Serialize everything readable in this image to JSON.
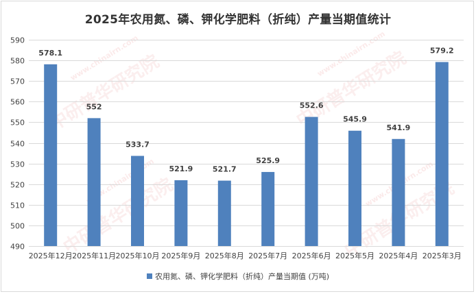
{
  "chart_data": {
    "type": "bar",
    "title": "2025年农用氮、磷、钾化学肥料（折纯）产量当期值统计",
    "categories": [
      "2025年12月",
      "2025年11月",
      "2025年10月",
      "2025年9月",
      "2025年8月",
      "2025年7月",
      "2025年6月",
      "2025年5月",
      "2025年4月",
      "2025年3月"
    ],
    "series": [
      {
        "name": "农用氮、磷、钾化学肥料（折纯）产量当期值 (万吨)",
        "values": [
          578.1,
          552,
          533.7,
          521.9,
          521.7,
          525.9,
          552.6,
          545.9,
          541.9,
          579.2
        ],
        "labels": [
          "578.1",
          "552",
          "533.7",
          "521.9",
          "521.7",
          "525.9",
          "552.6",
          "545.9",
          "541.9",
          "579.2"
        ]
      }
    ],
    "ylim": [
      490,
      590
    ],
    "yticks": [
      490,
      500,
      510,
      520,
      530,
      540,
      550,
      560,
      570,
      580,
      590
    ],
    "grid": true,
    "legend_position": "bottom",
    "colors": {
      "bar": "#4f81bd",
      "grid": "#d9d9d9",
      "text": "#404040"
    }
  },
  "watermark": {
    "cn": "中研普华研究院",
    "en": "www.chinairn.com",
    "logo": "CIRN"
  }
}
